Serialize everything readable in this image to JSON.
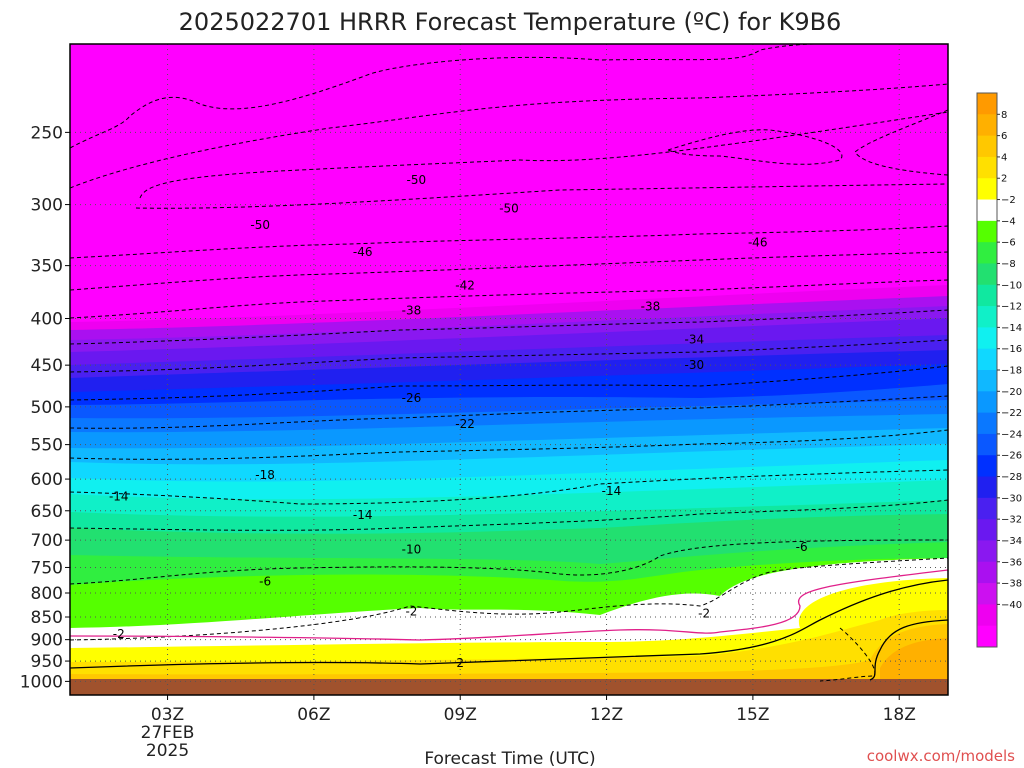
{
  "chart_data": {
    "type": "heatmap",
    "title": "2025022701 HRRR Forecast Temperature (ºC) for K9B6",
    "xlabel": "Forecast Time (UTC)",
    "ylabel": "",
    "credit": "coolwx.com/models",
    "x_ticks": [
      {
        "hour": 3,
        "label": "03Z",
        "date_lines": [
          "27FEB",
          "2025"
        ]
      },
      {
        "hour": 6,
        "label": "06Z"
      },
      {
        "hour": 9,
        "label": "09Z"
      },
      {
        "hour": 12,
        "label": "12Z"
      },
      {
        "hour": 15,
        "label": "15Z"
      },
      {
        "hour": 18,
        "label": "18Z"
      }
    ],
    "xlim": [
      1,
      19
    ],
    "y_ticks": [
      250,
      300,
      350,
      400,
      450,
      500,
      550,
      600,
      650,
      700,
      750,
      800,
      850,
      900,
      950,
      1000
    ],
    "ylim": [
      1035,
      200
    ],
    "y_scale": "log",
    "colorbar_levels": [
      8,
      6,
      4,
      2,
      -2,
      -4,
      -6,
      -8,
      -10,
      -12,
      -14,
      -16,
      -18,
      -20,
      -22,
      -24,
      -26,
      -28,
      -30,
      -32,
      -34,
      -36,
      -38,
      -40
    ],
    "colors": [
      "#FF9A00",
      "#FFB000",
      "#FFC800",
      "#FFE000",
      "#FFFF00",
      "#FFFFFF",
      "#55FF00",
      "#30EE40",
      "#22E070",
      "#10E8A0",
      "#10F0C8",
      "#10F0F0",
      "#10D8FF",
      "#10B8FF",
      "#0A98FF",
      "#0A78FF",
      "#0A58FF",
      "#0030FF",
      "#2020F0",
      "#4A20F0",
      "#6A18F0",
      "#8A18F0",
      "#AA10F0",
      "#CC10F0",
      "#EE00F0",
      "#FF00FF"
    ],
    "ground_color": "#A0522D",
    "contour_labels": [
      {
        "text": "-50",
        "hour": 8.1,
        "p": 282
      },
      {
        "text": "-50",
        "hour": 4.9,
        "p": 316
      },
      {
        "text": "-50",
        "hour": 10.0,
        "p": 303
      },
      {
        "text": "-46",
        "hour": 7.0,
        "p": 338
      },
      {
        "text": "-46",
        "hour": 15.1,
        "p": 330
      },
      {
        "text": "-42",
        "hour": 9.1,
        "p": 368
      },
      {
        "text": "-38",
        "hour": 8.0,
        "p": 392
      },
      {
        "text": "-38",
        "hour": 12.9,
        "p": 388
      },
      {
        "text": "-34",
        "hour": 13.8,
        "p": 422
      },
      {
        "text": "-30",
        "hour": 13.8,
        "p": 450
      },
      {
        "text": "-26",
        "hour": 8.0,
        "p": 489
      },
      {
        "text": "-22",
        "hour": 9.1,
        "p": 522
      },
      {
        "text": "-18",
        "hour": 5.0,
        "p": 594
      },
      {
        "text": "-14",
        "hour": 2.0,
        "p": 627
      },
      {
        "text": "-14",
        "hour": 7.0,
        "p": 657
      },
      {
        "text": "-14",
        "hour": 12.1,
        "p": 618
      },
      {
        "text": "-10",
        "hour": 8.0,
        "p": 717
      },
      {
        "text": "-6",
        "hour": 5.0,
        "p": 777
      },
      {
        "text": "-6",
        "hour": 16.0,
        "p": 712
      },
      {
        "text": "-2",
        "hour": 8.0,
        "p": 838
      },
      {
        "text": "-2",
        "hour": 14.0,
        "p": 843
      },
      {
        "text": "-2",
        "hour": 2.0,
        "p": 887
      },
      {
        "text": "2",
        "hour": 9.0,
        "p": 955
      }
    ]
  }
}
